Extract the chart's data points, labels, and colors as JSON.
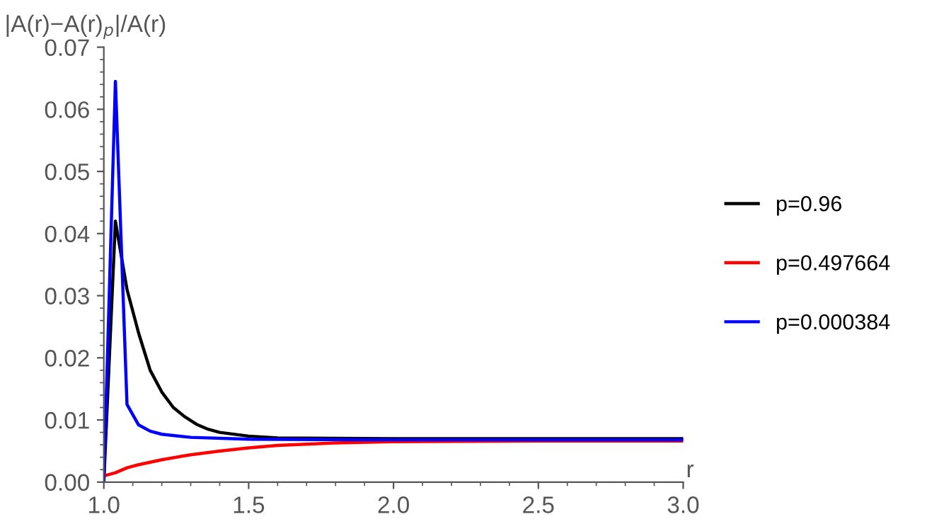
{
  "chart_data": {
    "type": "line",
    "ylabel": "|A(r)−A(r)$_{p}$|/A(r)",
    "xlabel": "r",
    "xlim": [
      1.0,
      3.0
    ],
    "ylim": [
      0.0,
      0.07
    ],
    "xticks": [
      {
        "value": 1.0,
        "label": "1.0"
      },
      {
        "value": 1.5,
        "label": "1.5"
      },
      {
        "value": 2.0,
        "label": "2.0"
      },
      {
        "value": 2.5,
        "label": "2.5"
      },
      {
        "value": 3.0,
        "label": "3.0"
      }
    ],
    "yticks": [
      {
        "value": 0.0,
        "label": "0.00"
      },
      {
        "value": 0.01,
        "label": "0.01"
      },
      {
        "value": 0.02,
        "label": "0.02"
      },
      {
        "value": 0.03,
        "label": "0.03"
      },
      {
        "value": 0.04,
        "label": "0.04"
      },
      {
        "value": 0.05,
        "label": "0.05"
      },
      {
        "value": 0.06,
        "label": "0.06"
      },
      {
        "value": 0.07,
        "label": "0.07"
      }
    ],
    "grid": false,
    "legend": "right",
    "marker": "none",
    "line_style": "solid",
    "series": [
      {
        "name": "p=0.96",
        "color": "#000000",
        "x": [
          1.0,
          1.04,
          1.08,
          1.12,
          1.16,
          1.2,
          1.24,
          1.28,
          1.32,
          1.36,
          1.4,
          1.5,
          1.6,
          2.0,
          3.0
        ],
        "values": [
          0.0,
          0.042,
          0.031,
          0.024,
          0.018,
          0.0145,
          0.012,
          0.0105,
          0.0093,
          0.0085,
          0.008,
          0.0074,
          0.0071,
          0.007,
          0.007
        ]
      },
      {
        "name": "p=0.497664",
        "color": "#ff0000",
        "x": [
          1.0,
          1.04,
          1.08,
          1.12,
          1.2,
          1.3,
          1.4,
          1.5,
          1.6,
          1.8,
          2.0,
          2.5,
          3.0
        ],
        "values": [
          0.001,
          0.0015,
          0.0023,
          0.0028,
          0.0036,
          0.0044,
          0.005,
          0.0055,
          0.0059,
          0.0063,
          0.0065,
          0.0066,
          0.0066
        ]
      },
      {
        "name": "p=0.000384",
        "color": "#0000ff",
        "x": [
          1.0,
          1.04,
          1.08,
          1.12,
          1.16,
          1.2,
          1.3,
          1.5,
          2.0,
          3.0
        ],
        "values": [
          0.0,
          0.0645,
          0.0125,
          0.0092,
          0.0082,
          0.0077,
          0.0072,
          0.0069,
          0.0068,
          0.0068
        ]
      }
    ]
  }
}
